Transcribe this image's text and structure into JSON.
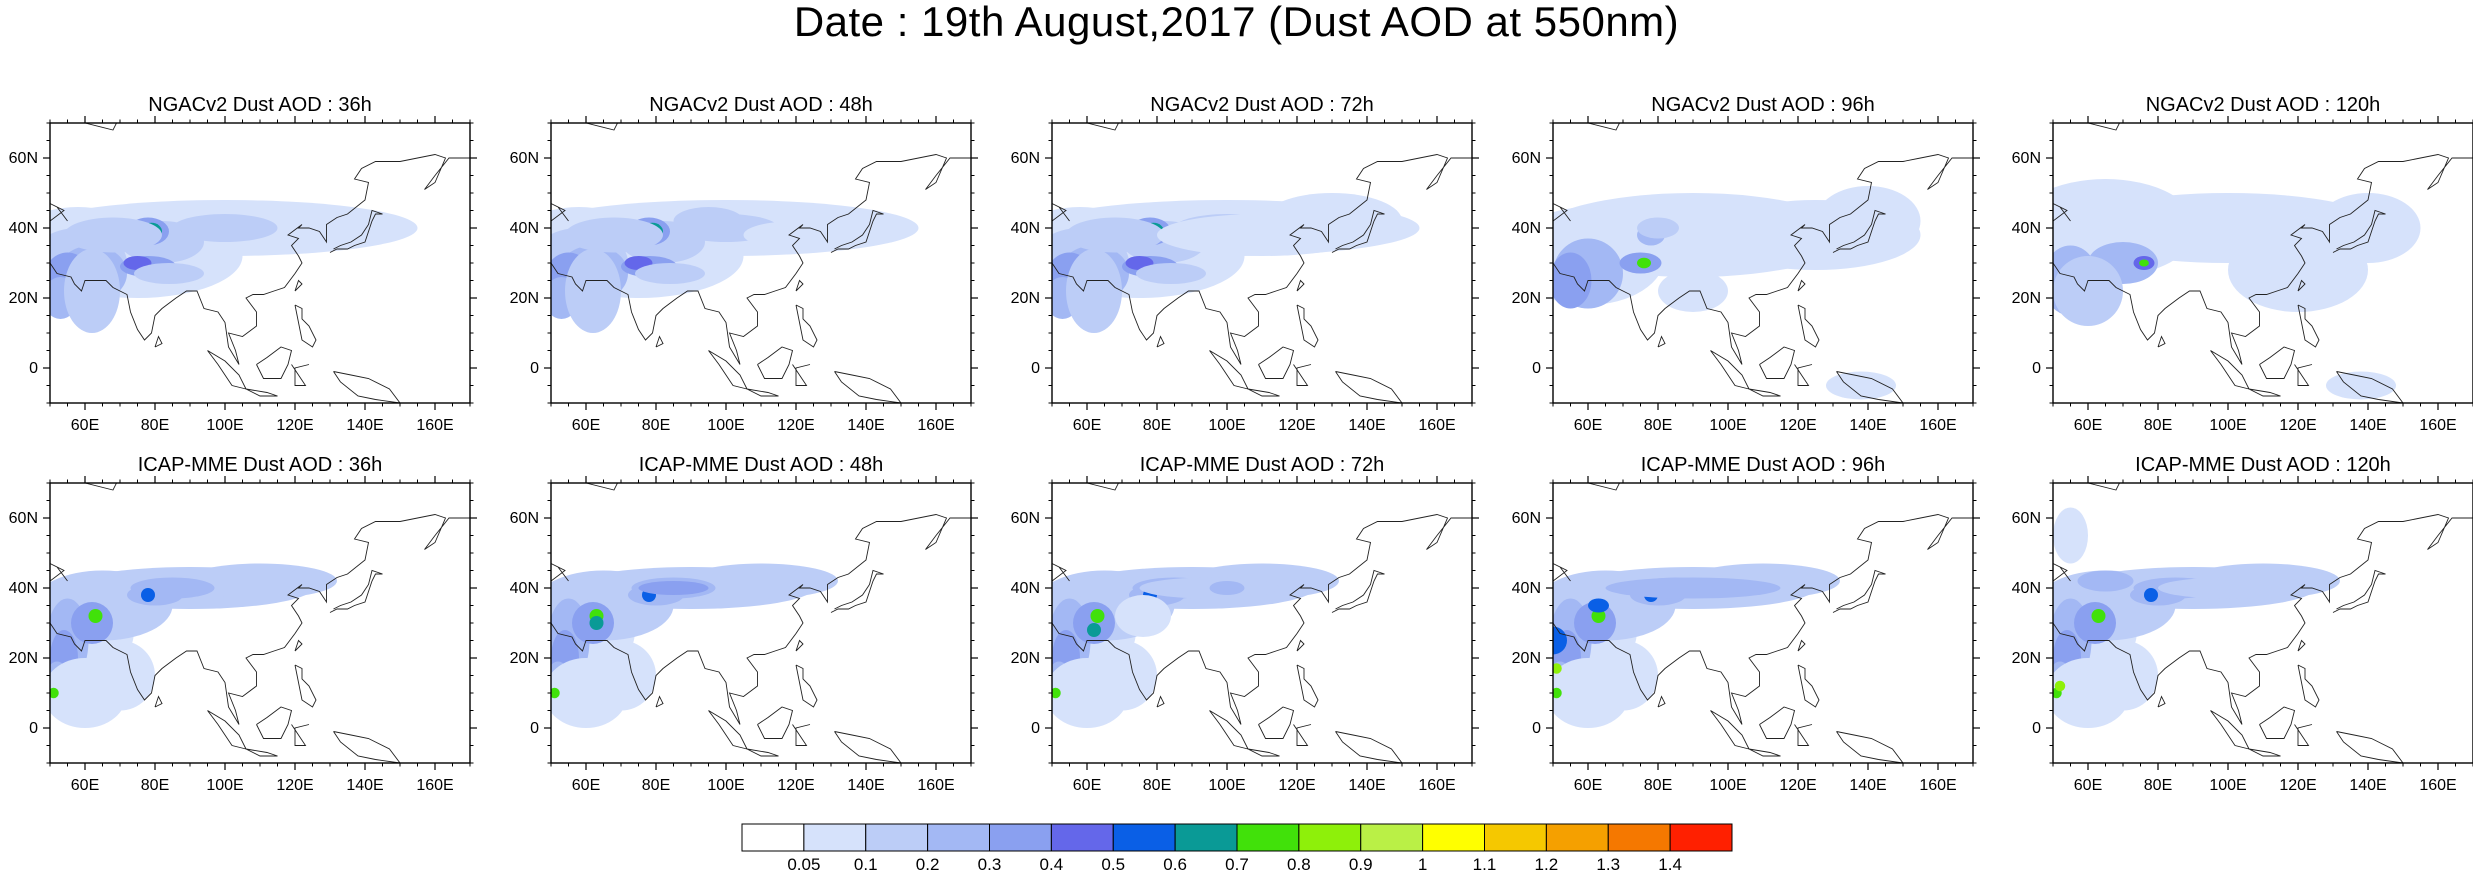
{
  "title": "Date : 19th August,2017 (Dust AOD at 550nm)",
  "panels": [
    {
      "title": "NGACv2 Dust AOD : 36h"
    },
    {
      "title": "NGACv2 Dust AOD : 48h"
    },
    {
      "title": "NGACv2 Dust AOD : 72h"
    },
    {
      "title": "NGACv2 Dust AOD : 96h"
    },
    {
      "title": "NGACv2 Dust AOD : 120h"
    },
    {
      "title": "ICAP-MME Dust AOD : 36h"
    },
    {
      "title": "ICAP-MME Dust AOD : 48h"
    },
    {
      "title": "ICAP-MME Dust AOD : 72h"
    },
    {
      "title": "ICAP-MME Dust AOD : 96h"
    },
    {
      "title": "ICAP-MME Dust AOD : 120h"
    }
  ],
  "map": {
    "lon_range": [
      50,
      170
    ],
    "lat_range": [
      -10,
      70
    ],
    "lon_ticks": [
      "60E",
      "80E",
      "100E",
      "120E",
      "140E",
      "160E"
    ],
    "lon_tick_values": [
      60,
      80,
      100,
      120,
      140,
      160
    ],
    "lat_ticks": [
      "60N",
      "40N",
      "20N",
      "0"
    ],
    "lat_tick_values": [
      60,
      40,
      20,
      0
    ]
  },
  "colorbar": {
    "labels": [
      "0.05",
      "0.1",
      "0.2",
      "0.3",
      "0.4",
      "0.5",
      "0.6",
      "0.7",
      "0.8",
      "0.9",
      "1",
      "1.1",
      "1.2",
      "1.3",
      "1.4"
    ],
    "colors": [
      "#ffffff",
      "#d6e2fb",
      "#bccdf7",
      "#a3b8f4",
      "#8aa0f0",
      "#6467ea",
      "#0a5fe6",
      "#0a9a96",
      "#41e10a",
      "#8ef00a",
      "#baf046",
      "#ffff00",
      "#f5c800",
      "#f5a000",
      "#f57800",
      "#ff2000"
    ]
  }
}
